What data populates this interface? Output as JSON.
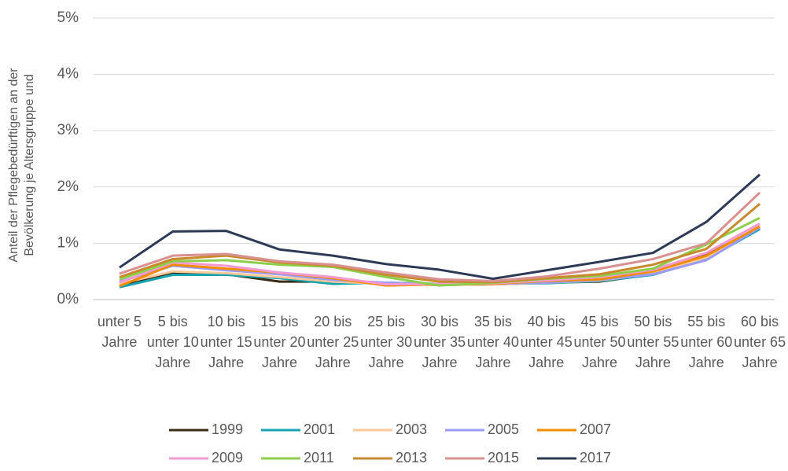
{
  "chart_data": {
    "type": "line",
    "y_label": "Anteil der Pflegebedürftigen an der Bevölkerung je Altersgruppe und",
    "categories": [
      "unter 5 Jahre",
      "5 bis unter 10 Jahre",
      "10 bis unter 15 Jahre",
      "15 bis unter 20 Jahre",
      "20 bis unter 25 Jahre",
      "25 bis unter 30 Jahre",
      "30 bis unter 35 Jahre",
      "35 bis unter 40 Jahre",
      "40 bis unter 45 Jahre",
      "45 bis unter 50 Jahre",
      "50 bis unter 55 Jahre",
      "55 bis unter 60 Jahre",
      "60 bis unter 65 Jahre"
    ],
    "series": [
      {
        "name": "1999",
        "color": "#3b2a14",
        "values": [
          0.24,
          0.47,
          0.45,
          0.32,
          0.32,
          0.28,
          0.26,
          0.27,
          0.3,
          0.32,
          0.45,
          0.8,
          1.27
        ]
      },
      {
        "name": "2001",
        "color": "#17a3b0",
        "values": [
          0.22,
          0.44,
          0.44,
          0.38,
          0.28,
          0.3,
          0.28,
          0.28,
          0.29,
          0.33,
          0.44,
          0.72,
          1.25
        ]
      },
      {
        "name": "2003",
        "color": "#fbc99a",
        "values": [
          0.28,
          0.5,
          0.47,
          0.4,
          0.32,
          0.28,
          0.26,
          0.27,
          0.3,
          0.34,
          0.46,
          0.75,
          1.3
        ]
      },
      {
        "name": "2005",
        "color": "#9b9bf5",
        "values": [
          0.32,
          0.6,
          0.52,
          0.45,
          0.35,
          0.3,
          0.27,
          0.28,
          0.3,
          0.35,
          0.45,
          0.7,
          1.28
        ]
      },
      {
        "name": "2007",
        "color": "#f08c00",
        "values": [
          0.24,
          0.62,
          0.55,
          0.48,
          0.38,
          0.25,
          0.27,
          0.28,
          0.33,
          0.36,
          0.5,
          0.78,
          1.3
        ]
      },
      {
        "name": "2009",
        "color": "#f49ad0",
        "values": [
          0.3,
          0.66,
          0.6,
          0.48,
          0.4,
          0.27,
          0.28,
          0.29,
          0.34,
          0.4,
          0.53,
          0.83,
          1.35
        ]
      },
      {
        "name": "2011",
        "color": "#8ccf4d",
        "values": [
          0.36,
          0.68,
          0.7,
          0.62,
          0.58,
          0.4,
          0.25,
          0.3,
          0.37,
          0.42,
          0.55,
          0.98,
          1.45
        ]
      },
      {
        "name": "2013",
        "color": "#c88a2c",
        "values": [
          0.4,
          0.72,
          0.78,
          0.66,
          0.6,
          0.44,
          0.32,
          0.31,
          0.38,
          0.45,
          0.62,
          0.9,
          1.7
        ]
      },
      {
        "name": "2015",
        "color": "#d99090",
        "values": [
          0.46,
          0.78,
          0.81,
          0.68,
          0.62,
          0.48,
          0.36,
          0.33,
          0.41,
          0.55,
          0.72,
          1.0,
          1.9
        ]
      },
      {
        "name": "2017",
        "color": "#2e3a55",
        "values": [
          0.57,
          1.21,
          1.22,
          0.89,
          0.78,
          0.63,
          0.53,
          0.37,
          0.52,
          0.67,
          0.83,
          1.38,
          2.22
        ]
      }
    ],
    "ylim": [
      0,
      5
    ],
    "yticks": [
      {
        "value": 0,
        "label": "0%"
      },
      {
        "value": 1,
        "label": "1%"
      },
      {
        "value": 2,
        "label": "2%"
      },
      {
        "value": 3,
        "label": "3%"
      },
      {
        "value": 4,
        "label": "4%"
      },
      {
        "value": 5,
        "label": "5%"
      }
    ],
    "grid": true,
    "legend": "bottom"
  }
}
